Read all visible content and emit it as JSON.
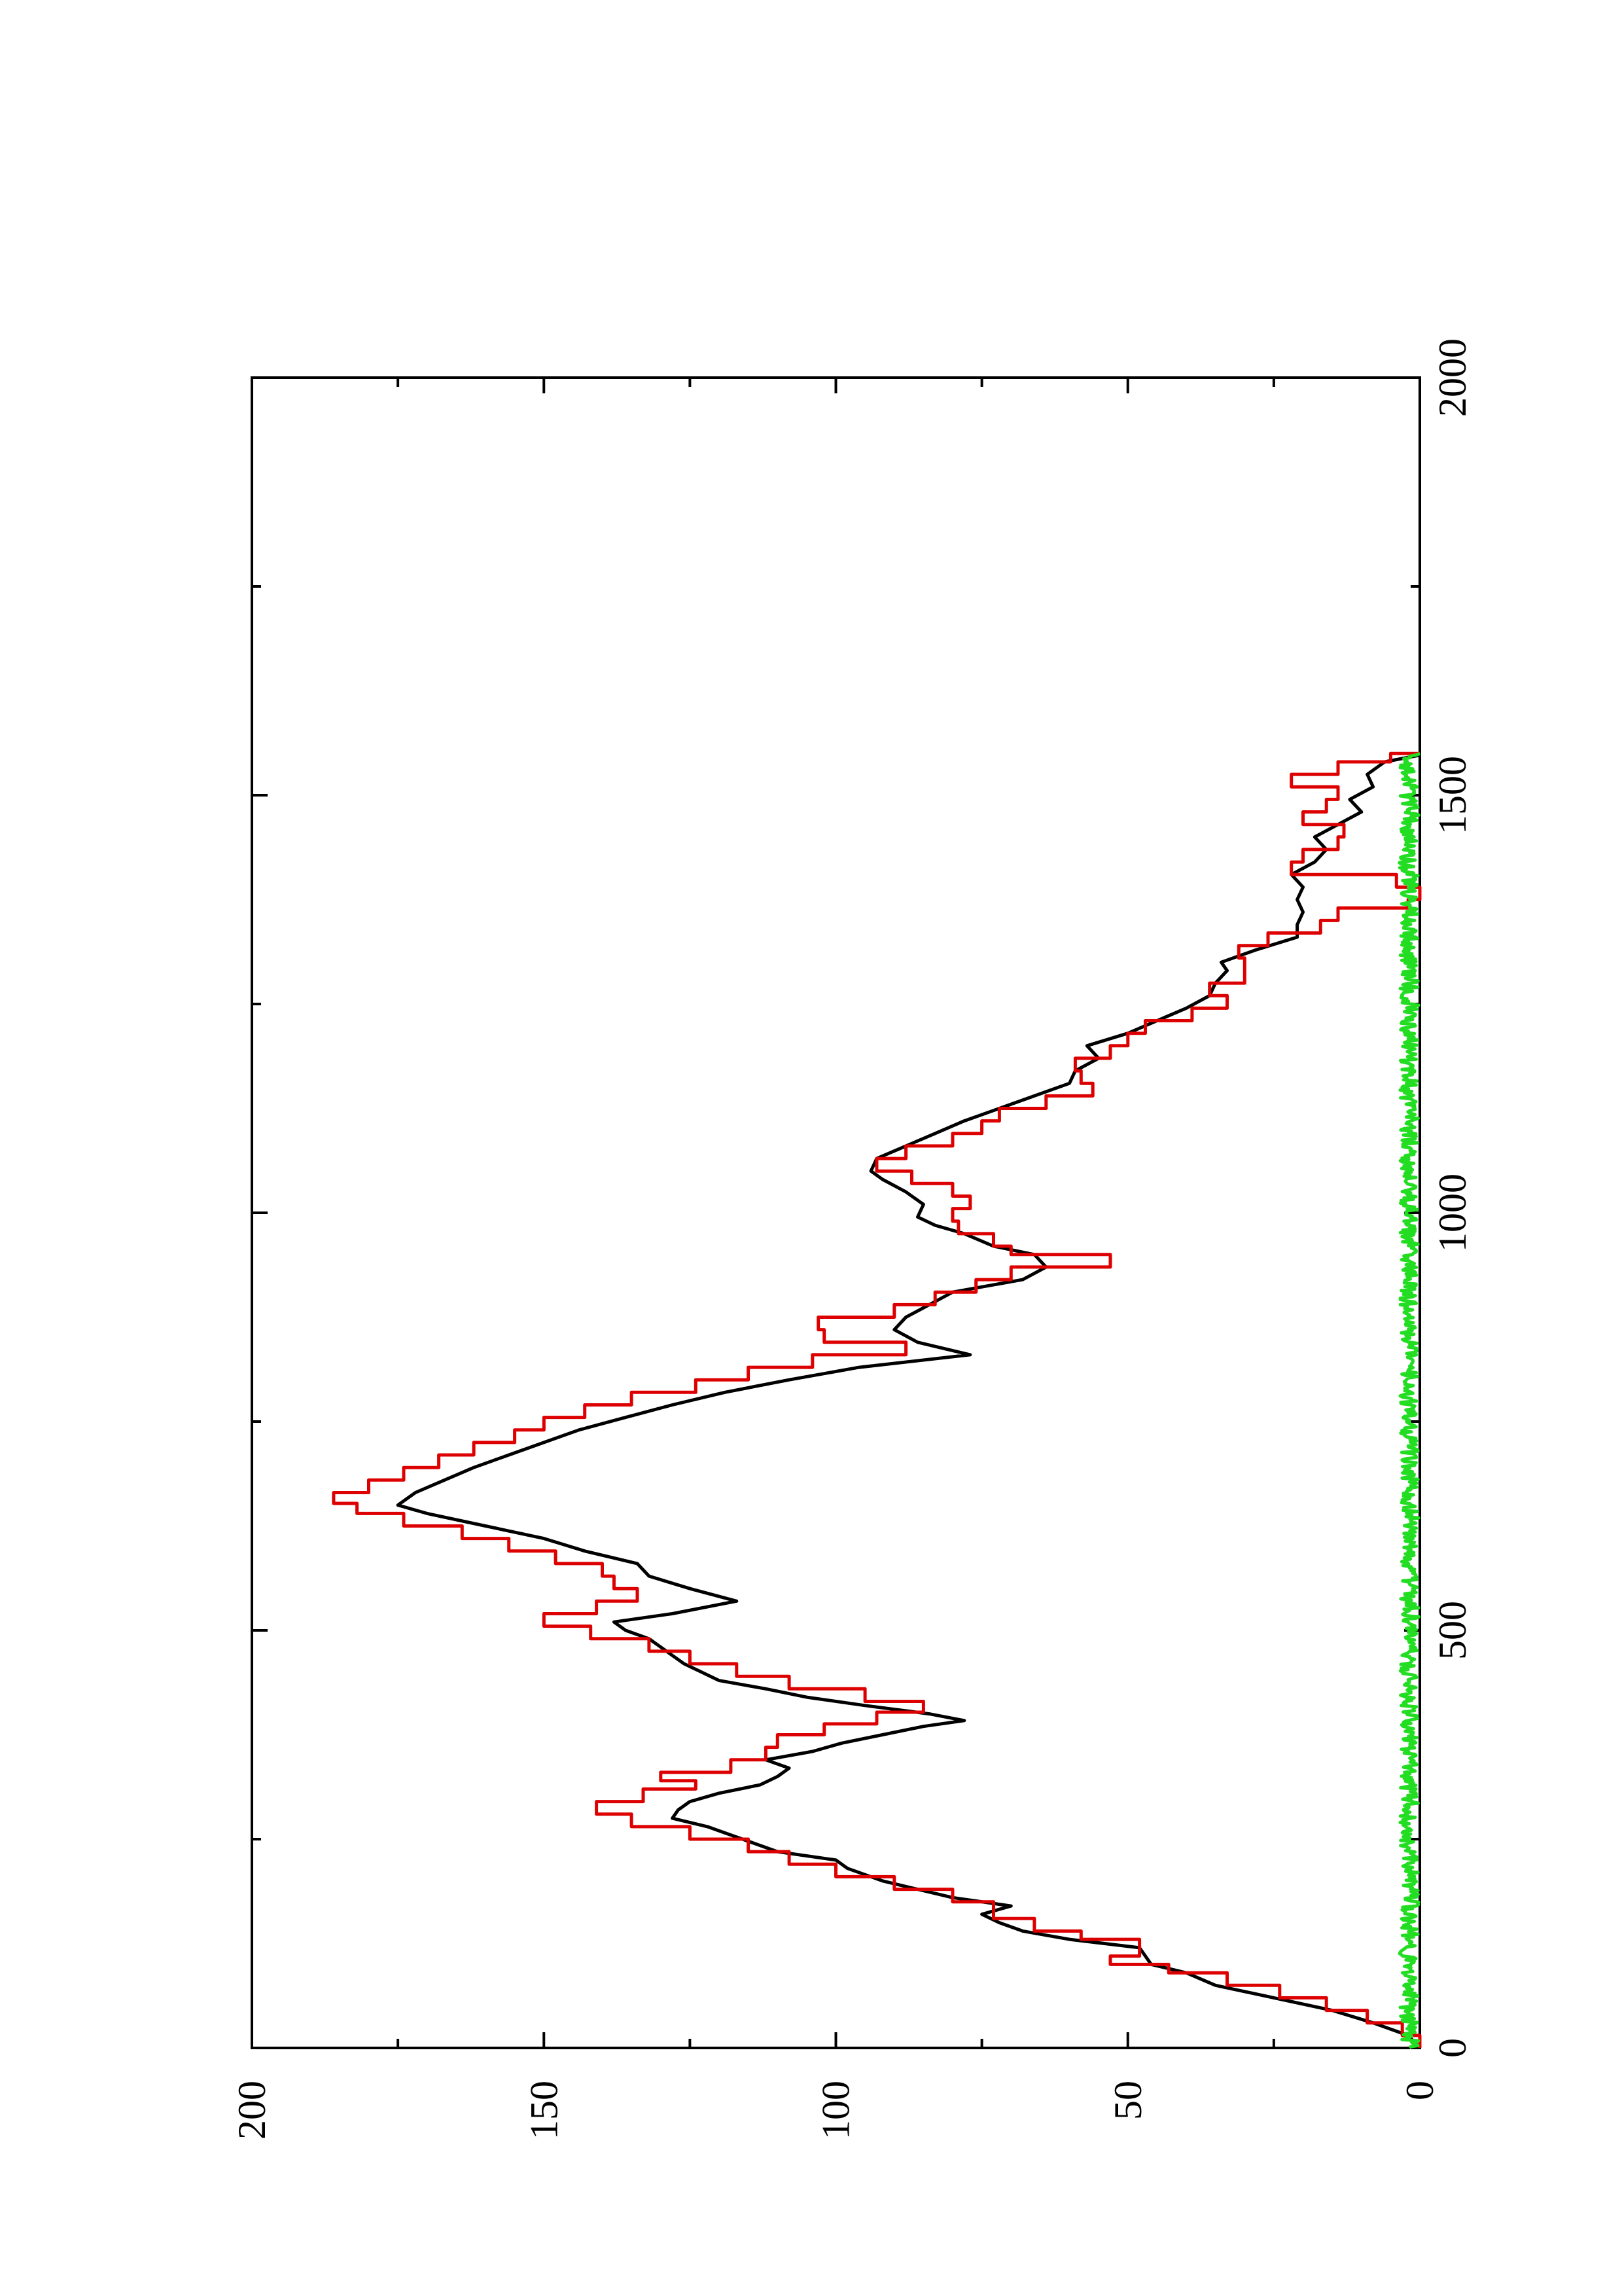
{
  "chart_data": {
    "type": "line",
    "orientation": "rotated-90-ccw",
    "title": "",
    "xlabel": "",
    "ylabel": "",
    "xlim": [
      0,
      2000
    ],
    "ylim": [
      0,
      200
    ],
    "x_ticks": [
      0,
      500,
      1000,
      1500,
      2000
    ],
    "y_ticks": [
      0,
      50,
      100,
      150,
      200
    ],
    "x_minor_ticks": [
      250,
      750,
      1250,
      1750
    ],
    "y_minor_ticks": [
      25,
      75,
      125,
      175
    ],
    "grid": false,
    "legend": "none",
    "series": [
      {
        "color": "#000000",
        "step": false,
        "points": [
          [
            0,
            0
          ],
          [
            15,
            2
          ],
          [
            30,
            8
          ],
          [
            45,
            15
          ],
          [
            60,
            25
          ],
          [
            75,
            35
          ],
          [
            90,
            40
          ],
          [
            100,
            46
          ],
          [
            110,
            47
          ],
          [
            120,
            48
          ],
          [
            130,
            60
          ],
          [
            140,
            68
          ],
          [
            150,
            72
          ],
          [
            160,
            75
          ],
          [
            170,
            70
          ],
          [
            180,
            80
          ],
          [
            190,
            86
          ],
          [
            200,
            92
          ],
          [
            215,
            98
          ],
          [
            225,
            100
          ],
          [
            235,
            110
          ],
          [
            245,
            114
          ],
          [
            255,
            118
          ],
          [
            265,
            122
          ],
          [
            275,
            128
          ],
          [
            285,
            127
          ],
          [
            295,
            125
          ],
          [
            305,
            120
          ],
          [
            315,
            113
          ],
          [
            325,
            110
          ],
          [
            335,
            108
          ],
          [
            345,
            112
          ],
          [
            355,
            104
          ],
          [
            365,
            99
          ],
          [
            375,
            92
          ],
          [
            385,
            85
          ],
          [
            392,
            78
          ],
          [
            400,
            84
          ],
          [
            410,
            95
          ],
          [
            420,
            105
          ],
          [
            430,
            112
          ],
          [
            440,
            120
          ],
          [
            450,
            123
          ],
          [
            460,
            126
          ],
          [
            470,
            128
          ],
          [
            480,
            130
          ],
          [
            490,
            132
          ],
          [
            500,
            136
          ],
          [
            510,
            138
          ],
          [
            520,
            128
          ],
          [
            535,
            117
          ],
          [
            550,
            125
          ],
          [
            565,
            132
          ],
          [
            580,
            134
          ],
          [
            595,
            143
          ],
          [
            610,
            150
          ],
          [
            625,
            160
          ],
          [
            640,
            170
          ],
          [
            650,
            175
          ],
          [
            665,
            172
          ],
          [
            680,
            167
          ],
          [
            695,
            162
          ],
          [
            710,
            156
          ],
          [
            725,
            150
          ],
          [
            740,
            144
          ],
          [
            755,
            136
          ],
          [
            770,
            128
          ],
          [
            785,
            119
          ],
          [
            800,
            108
          ],
          [
            815,
            96
          ],
          [
            830,
            77
          ],
          [
            845,
            86
          ],
          [
            860,
            90
          ],
          [
            875,
            88
          ],
          [
            890,
            84
          ],
          [
            905,
            80
          ],
          [
            920,
            68
          ],
          [
            935,
            64
          ],
          [
            950,
            66
          ],
          [
            960,
            73
          ],
          [
            975,
            78
          ],
          [
            985,
            83
          ],
          [
            995,
            86
          ],
          [
            1010,
            85
          ],
          [
            1025,
            88
          ],
          [
            1040,
            92
          ],
          [
            1050,
            94
          ],
          [
            1065,
            93
          ],
          [
            1080,
            88
          ],
          [
            1095,
            83
          ],
          [
            1110,
            78
          ],
          [
            1125,
            72
          ],
          [
            1140,
            66
          ],
          [
            1155,
            60
          ],
          [
            1170,
            59
          ],
          [
            1185,
            55
          ],
          [
            1200,
            57
          ],
          [
            1215,
            50
          ],
          [
            1230,
            45
          ],
          [
            1245,
            40
          ],
          [
            1260,
            36
          ],
          [
            1275,
            35
          ],
          [
            1290,
            33
          ],
          [
            1300,
            34
          ],
          [
            1315,
            28
          ],
          [
            1330,
            21
          ],
          [
            1345,
            21
          ],
          [
            1360,
            20
          ],
          [
            1375,
            21
          ],
          [
            1390,
            20
          ],
          [
            1405,
            22
          ],
          [
            1420,
            18
          ],
          [
            1435,
            16
          ],
          [
            1450,
            18
          ],
          [
            1465,
            14
          ],
          [
            1480,
            10
          ],
          [
            1495,
            12
          ],
          [
            1510,
            8
          ],
          [
            1525,
            9
          ],
          [
            1540,
            6
          ],
          [
            1548,
            0
          ]
        ]
      },
      {
        "color": "#dd0000",
        "step": true,
        "points": [
          [
            0,
            0
          ],
          [
            15,
            3
          ],
          [
            30,
            9
          ],
          [
            45,
            16
          ],
          [
            60,
            24
          ],
          [
            75,
            33
          ],
          [
            90,
            43
          ],
          [
            100,
            53
          ],
          [
            110,
            48
          ],
          [
            120,
            48
          ],
          [
            130,
            58
          ],
          [
            140,
            66
          ],
          [
            155,
            73
          ],
          [
            175,
            80
          ],
          [
            190,
            90
          ],
          [
            205,
            100
          ],
          [
            220,
            108
          ],
          [
            235,
            115
          ],
          [
            250,
            125
          ],
          [
            265,
            135
          ],
          [
            280,
            141
          ],
          [
            295,
            133
          ],
          [
            310,
            124
          ],
          [
            320,
            130
          ],
          [
            330,
            118
          ],
          [
            345,
            112
          ],
          [
            360,
            110
          ],
          [
            375,
            102
          ],
          [
            388,
            93
          ],
          [
            402,
            85
          ],
          [
            415,
            95
          ],
          [
            430,
            108
          ],
          [
            445,
            117
          ],
          [
            460,
            125
          ],
          [
            475,
            132
          ],
          [
            490,
            142
          ],
          [
            505,
            150
          ],
          [
            520,
            141
          ],
          [
            535,
            134
          ],
          [
            550,
            138
          ],
          [
            565,
            140
          ],
          [
            580,
            148
          ],
          [
            595,
            156
          ],
          [
            610,
            164
          ],
          [
            625,
            174
          ],
          [
            640,
            182
          ],
          [
            652,
            186
          ],
          [
            665,
            180
          ],
          [
            680,
            174
          ],
          [
            695,
            168
          ],
          [
            710,
            162
          ],
          [
            725,
            155
          ],
          [
            740,
            150
          ],
          [
            755,
            143
          ],
          [
            770,
            135
          ],
          [
            785,
            124
          ],
          [
            800,
            115
          ],
          [
            815,
            104
          ],
          [
            830,
            88
          ],
          [
            845,
            102
          ],
          [
            860,
            103
          ],
          [
            875,
            90
          ],
          [
            890,
            83
          ],
          [
            905,
            76
          ],
          [
            920,
            70
          ],
          [
            935,
            53
          ],
          [
            950,
            70
          ],
          [
            960,
            73
          ],
          [
            975,
            79
          ],
          [
            990,
            80
          ],
          [
            1005,
            77
          ],
          [
            1020,
            80
          ],
          [
            1035,
            87
          ],
          [
            1050,
            93
          ],
          [
            1065,
            88
          ],
          [
            1080,
            80
          ],
          [
            1095,
            75
          ],
          [
            1110,
            72
          ],
          [
            1125,
            64
          ],
          [
            1140,
            56
          ],
          [
            1155,
            58
          ],
          [
            1170,
            59
          ],
          [
            1185,
            53
          ],
          [
            1200,
            50
          ],
          [
            1215,
            47
          ],
          [
            1230,
            39
          ],
          [
            1245,
            33
          ],
          [
            1260,
            36
          ],
          [
            1275,
            30
          ],
          [
            1290,
            30
          ],
          [
            1305,
            31
          ],
          [
            1320,
            26
          ],
          [
            1335,
            17
          ],
          [
            1350,
            14
          ],
          [
            1365,
            2
          ],
          [
            1375,
            0
          ],
          [
            1390,
            4
          ],
          [
            1405,
            22
          ],
          [
            1420,
            20
          ],
          [
            1435,
            14
          ],
          [
            1450,
            13
          ],
          [
            1465,
            20
          ],
          [
            1480,
            16
          ],
          [
            1495,
            14
          ],
          [
            1510,
            22
          ],
          [
            1525,
            14
          ],
          [
            1540,
            5
          ],
          [
            1550,
            0
          ]
        ]
      },
      {
        "color": "#22dd22",
        "step": false,
        "noise": true,
        "points": [
          [
            0,
            0
          ],
          [
            10,
            2
          ],
          [
            20,
            1
          ],
          [
            35,
            2
          ],
          [
            50,
            0.5
          ],
          [
            70,
            2
          ],
          [
            90,
            1
          ],
          [
            110,
            2.5
          ],
          [
            130,
            1
          ],
          [
            150,
            2
          ],
          [
            170,
            0.5
          ],
          [
            190,
            2
          ],
          [
            210,
            1
          ],
          [
            230,
            2.5
          ],
          [
            250,
            1
          ],
          [
            270,
            2
          ],
          [
            290,
            0.5
          ],
          [
            310,
            2
          ],
          [
            330,
            1
          ],
          [
            350,
            2
          ],
          [
            370,
            1.5
          ],
          [
            390,
            0.5
          ],
          [
            410,
            2
          ],
          [
            430,
            1
          ],
          [
            450,
            2.5
          ],
          [
            470,
            1
          ],
          [
            490,
            2
          ],
          [
            510,
            0.5
          ],
          [
            530,
            2
          ],
          [
            550,
            1
          ],
          [
            570,
            2
          ],
          [
            590,
            1
          ],
          [
            610,
            2
          ],
          [
            630,
            0.5
          ],
          [
            650,
            2
          ],
          [
            670,
            1
          ],
          [
            690,
            2
          ],
          [
            710,
            1
          ],
          [
            730,
            2
          ],
          [
            750,
            0.5
          ],
          [
            770,
            2
          ],
          [
            790,
            1
          ],
          [
            810,
            2.5
          ],
          [
            830,
            1
          ],
          [
            850,
            2
          ],
          [
            870,
            0.5
          ],
          [
            890,
            2
          ],
          [
            910,
            1
          ],
          [
            930,
            2
          ],
          [
            950,
            1
          ],
          [
            970,
            2
          ],
          [
            990,
            0.5
          ],
          [
            1010,
            2
          ],
          [
            1030,
            1
          ],
          [
            1050,
            2.5
          ],
          [
            1070,
            1
          ],
          [
            1090,
            2
          ],
          [
            1110,
            0.5
          ],
          [
            1130,
            2
          ],
          [
            1150,
            1
          ],
          [
            1170,
            2
          ],
          [
            1190,
            1
          ],
          [
            1210,
            2
          ],
          [
            1230,
            0.5
          ],
          [
            1250,
            2
          ],
          [
            1270,
            1
          ],
          [
            1290,
            2
          ],
          [
            1310,
            1
          ],
          [
            1330,
            2
          ],
          [
            1350,
            0.5
          ],
          [
            1370,
            2
          ],
          [
            1390,
            1
          ],
          [
            1410,
            2.5
          ],
          [
            1430,
            1
          ],
          [
            1450,
            2
          ],
          [
            1470,
            0.5
          ],
          [
            1490,
            2
          ],
          [
            1510,
            1
          ],
          [
            1530,
            2
          ],
          [
            1545,
            1
          ],
          [
            1550,
            0
          ]
        ]
      }
    ]
  }
}
